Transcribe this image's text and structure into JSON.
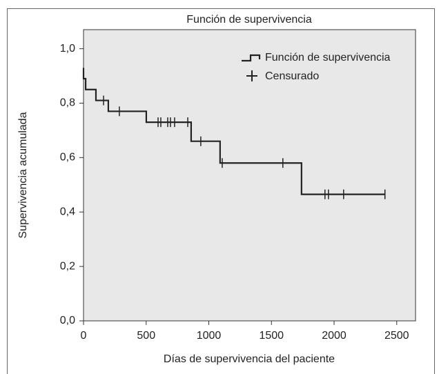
{
  "chart_data": {
    "type": "km",
    "title": "Función de supervivencia",
    "x_label": "Días de supervivencia del paciente",
    "y_label": "Supervivencia acumulada",
    "legend": "top-right",
    "background": "#e8e8e8",
    "xlim": [
      0,
      2650
    ],
    "ylim": [
      0,
      1.07
    ],
    "xticks": [
      0,
      500,
      1000,
      1500,
      2000,
      2500
    ],
    "yticks": [
      {
        "value": 0,
        "label": "0,0"
      },
      {
        "value": 0.2,
        "label": "0,2"
      },
      {
        "value": 0.4,
        "label": "0,4"
      },
      {
        "value": 0.6,
        "label": "0,6"
      },
      {
        "value": 0.8,
        "label": "0,8"
      },
      {
        "value": 1.0,
        "label": "1,0"
      }
    ],
    "series": [
      {
        "name": "Función de supervivencia",
        "color": "#222222",
        "x": [
          0,
          0,
          17,
          17,
          99,
          99,
          198,
          198,
          501,
          501,
          859,
          859,
          1090,
          1090,
          1740,
          1740,
          2406
        ],
        "values": [
          0.93,
          0.89,
          0.89,
          0.85,
          0.85,
          0.81,
          0.81,
          0.77,
          0.77,
          0.73,
          0.73,
          0.66,
          0.66,
          0.58,
          0.58,
          0.465,
          0.465
        ]
      },
      {
        "name": "Censurado",
        "color": "#222222",
        "x": [
          160,
          286,
          595,
          617,
          672,
          694,
          727,
          832,
          936,
          1107,
          1591,
          1927,
          1955,
          2076,
          2406
        ],
        "values": [
          0.81,
          0.77,
          0.73,
          0.73,
          0.73,
          0.73,
          0.73,
          0.73,
          0.66,
          0.58,
          0.58,
          0.465,
          0.465,
          0.465,
          0.465
        ]
      }
    ]
  }
}
